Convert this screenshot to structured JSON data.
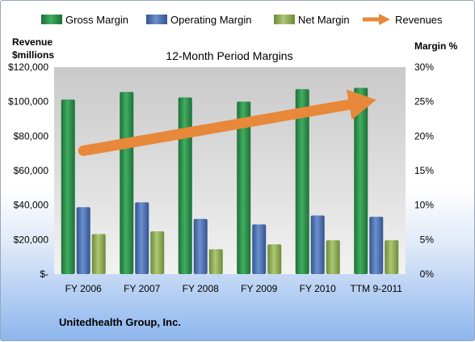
{
  "chart_data": {
    "type": "bar",
    "title": "12-Month Period Margins",
    "ylabel_left": [
      "Revenue",
      "$millions"
    ],
    "ylabel_right": "Margin %",
    "company": "Unitedhealth Group, Inc.",
    "categories": [
      "FY 2006",
      "FY 2007",
      "FY 2008",
      "FY 2009",
      "FY 2010",
      "TTM 9-2011"
    ],
    "left_ticks": [
      "$-",
      "$20,000",
      "$40,000",
      "$60,000",
      "$80,000",
      "$100,000",
      "$120,000"
    ],
    "right_ticks": [
      "0%",
      "5%",
      "10%",
      "15%",
      "20%",
      "25%",
      "30%"
    ],
    "ylim_left": [
      0,
      120000
    ],
    "ylim_right": [
      0,
      30
    ],
    "series": [
      {
        "name": "Gross Margin",
        "axis": "right",
        "color": "#2e8b4a",
        "values": [
          25.3,
          26.4,
          25.6,
          25.0,
          26.8,
          27.0
        ]
      },
      {
        "name": "Operating Margin",
        "axis": "right",
        "color": "#4f74b8",
        "values": [
          9.7,
          10.4,
          8.0,
          7.2,
          8.5,
          8.3
        ]
      },
      {
        "name": "Net Margin",
        "axis": "right",
        "color": "#93b05a",
        "values": [
          5.8,
          6.2,
          3.6,
          4.3,
          4.9,
          4.9
        ]
      }
    ],
    "trend": {
      "name": "Revenues",
      "axis": "left",
      "color": "#e8883a",
      "values": [
        71500,
        75400,
        81200,
        87100,
        94200,
        101000
      ]
    },
    "legend_position": "top",
    "grid": false
  }
}
